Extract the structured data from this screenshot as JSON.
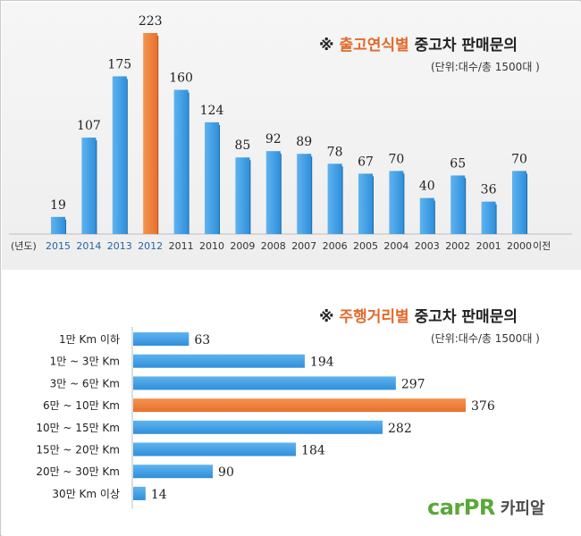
{
  "chart_data": [
    {
      "type": "bar",
      "title_symbol": "※",
      "title_accent": "출고연식별",
      "title_rest": "중고차 판매문의",
      "unit_note": "(단위:대수/총 1500대 )",
      "xlabel": "(년도)",
      "categories": [
        "2015",
        "2014",
        "2013",
        "2012",
        "2011",
        "2010",
        "2009",
        "2008",
        "2007",
        "2006",
        "2005",
        "2004",
        "2003",
        "2002",
        "2001",
        "2000"
      ],
      "last_category_suffix": "이전",
      "values": [
        19,
        107,
        175,
        223,
        160,
        124,
        85,
        92,
        89,
        78,
        67,
        70,
        40,
        65,
        36,
        70
      ],
      "highlight_category": "2012",
      "colors": {
        "bar": "#2f8fdb",
        "highlight": "#e8702e",
        "recent_label": "#2563a8"
      },
      "recent_label_categories": [
        "2015",
        "2014",
        "2013",
        "2012"
      ],
      "ylim": [
        0,
        223
      ]
    },
    {
      "type": "bar",
      "orientation": "horizontal",
      "title_symbol": "※",
      "title_accent": "주행거리별",
      "title_rest": "중고차 판매문의",
      "unit_note": "(단위:대수/총 1500대 )",
      "categories": [
        "1만 Km 이하",
        "1만 ~ 3만 Km",
        "3만 ~ 6만 Km",
        "6만 ~ 10만 Km",
        "10만 ~ 15만 Km",
        "15만 ~ 20만 Km",
        "20만 ~ 30만 Km",
        "30만 Km 이상"
      ],
      "values": [
        63,
        194,
        297,
        376,
        282,
        184,
        90,
        14
      ],
      "highlight_category": "6만 ~ 10만 Km",
      "colors": {
        "bar": "#2f8fdb",
        "highlight": "#e8702e"
      },
      "xlim": [
        0,
        376
      ]
    }
  ],
  "logo": {
    "word": "carPR",
    "korean": "카피알"
  }
}
